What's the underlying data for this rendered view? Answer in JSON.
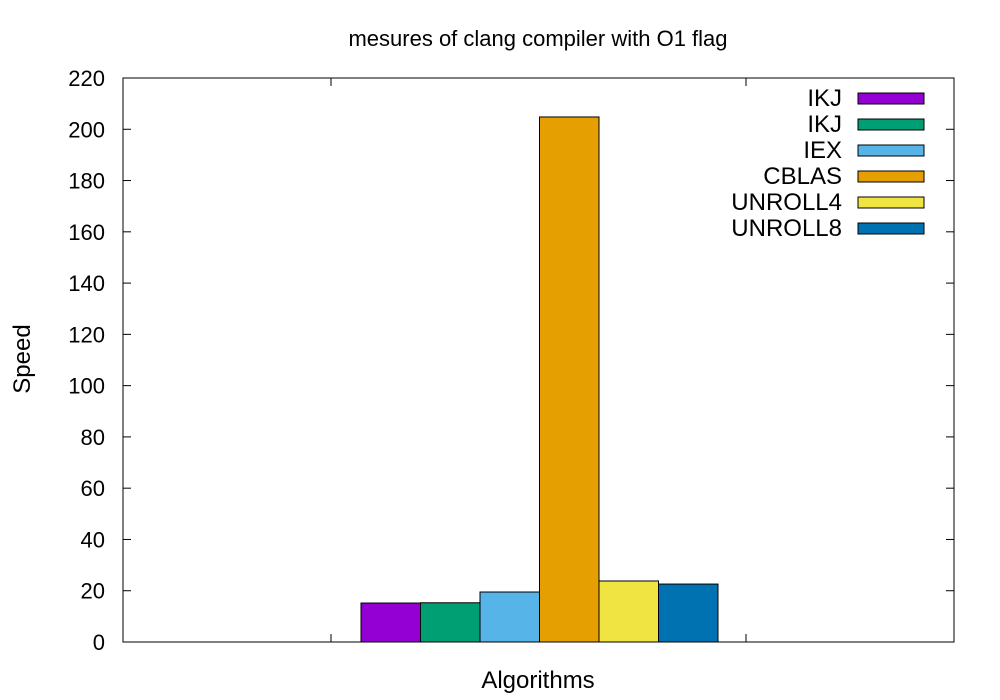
{
  "chart_data": {
    "type": "bar",
    "title": "mesures of clang compiler with O1 flag",
    "xlabel": "Algorithms",
    "ylabel": "Speed",
    "ylim": [
      0,
      220
    ],
    "ytick_values": [
      0,
      20,
      40,
      60,
      80,
      100,
      120,
      140,
      160,
      180,
      200,
      220
    ],
    "legend_position": "top-right",
    "grid": false,
    "series": [
      {
        "name": "IKJ",
        "value": 15.2,
        "color": "#9400d3"
      },
      {
        "name": "IKJ",
        "value": 15.3,
        "color": "#009e73"
      },
      {
        "name": "IEX",
        "value": 19.5,
        "color": "#56b4e9"
      },
      {
        "name": "CBLAS",
        "value": 204.8,
        "color": "#e69f00"
      },
      {
        "name": "UNROLL4",
        "value": 23.8,
        "color": "#f0e442"
      },
      {
        "name": "UNROLL8",
        "value": 22.6,
        "color": "#0072b2"
      }
    ]
  }
}
